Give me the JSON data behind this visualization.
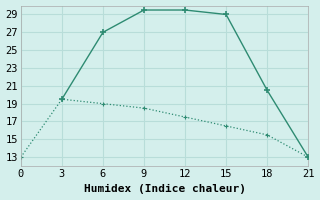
{
  "line1_x": [
    3,
    6,
    9,
    12,
    15,
    18,
    21
  ],
  "line1_y": [
    19.5,
    27,
    29.5,
    29.5,
    29,
    20.5,
    13
  ],
  "line2_x": [
    0,
    3,
    6,
    9,
    12,
    15,
    18,
    21
  ],
  "line2_y": [
    13,
    19.5,
    19.0,
    18.5,
    17.5,
    16.5,
    15.5,
    13
  ],
  "line_color": "#2e8b72",
  "bg_color": "#d4efec",
  "grid_color": "#b8ddd9",
  "xlabel": "Humidex (Indice chaleur)",
  "xlim": [
    0,
    21
  ],
  "ylim_min": 12,
  "ylim_max": 30,
  "xticks": [
    0,
    3,
    6,
    9,
    12,
    15,
    18,
    21
  ],
  "yticks": [
    13,
    15,
    17,
    19,
    21,
    23,
    25,
    27,
    29
  ],
  "font_size": 7.5,
  "xlabel_fontsize": 8
}
